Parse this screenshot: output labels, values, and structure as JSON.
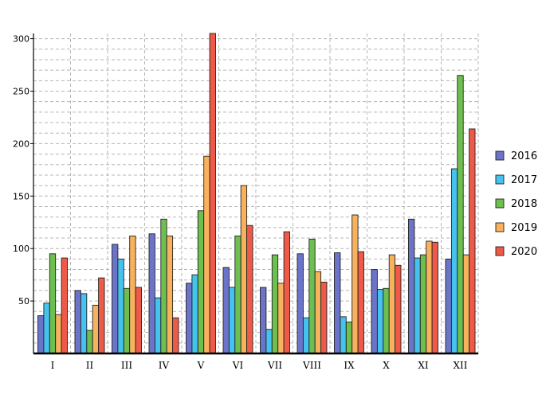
{
  "chart_data": {
    "type": "bar",
    "title": "",
    "xlabel": "",
    "ylabel": "",
    "categories": [
      "I",
      "II",
      "III",
      "IV",
      "V",
      "VI",
      "VII",
      "VIII",
      "IX",
      "X",
      "XI",
      "XII"
    ],
    "yticks": [
      50,
      100,
      150,
      200,
      250,
      300
    ],
    "ylim": [
      0,
      305
    ],
    "grid": true,
    "legend_position": "right",
    "series": [
      {
        "name": "2016",
        "color": "#6b74c8",
        "values": [
          36,
          60,
          104,
          114,
          67,
          82,
          63,
          95,
          96,
          80,
          128,
          90
        ]
      },
      {
        "name": "2017",
        "color": "#45c2ee",
        "values": [
          48,
          57,
          90,
          53,
          75,
          63,
          23,
          34,
          35,
          61,
          91,
          176
        ]
      },
      {
        "name": "2018",
        "color": "#6dbf4f",
        "values": [
          95,
          22,
          62,
          128,
          136,
          112,
          94,
          109,
          30,
          62,
          94,
          265
        ]
      },
      {
        "name": "2019",
        "color": "#f8b25e",
        "values": [
          37,
          46,
          112,
          112,
          188,
          160,
          67,
          78,
          132,
          94,
          107,
          94
        ]
      },
      {
        "name": "2020",
        "color": "#ef5a48",
        "values": [
          91,
          72,
          63,
          34,
          305,
          122,
          116,
          68,
          97,
          84,
          106,
          214
        ]
      }
    ]
  }
}
